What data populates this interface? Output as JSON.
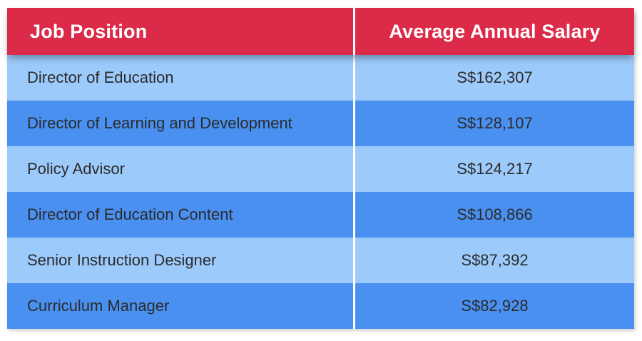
{
  "table": {
    "columns": [
      {
        "label": "Job Position"
      },
      {
        "label": "Average Annual Salary"
      }
    ],
    "rows": [
      {
        "position": "Director of Education",
        "salary": "S$162,307"
      },
      {
        "position": "Director of Learning and Development",
        "salary": "S$128,107"
      },
      {
        "position": "Policy Advisor",
        "salary": "S$124,217"
      },
      {
        "position": "Director of Education Content",
        "salary": "S$108,866"
      },
      {
        "position": "Senior Instruction Designer",
        "salary": "S$87,392"
      },
      {
        "position": "Curriculum Manager",
        "salary": "S$82,928"
      }
    ],
    "colors": {
      "header_bg": "#dc2a49",
      "header_text": "#ffffff",
      "row_light": "#9ccbfb",
      "row_dark": "#4a90f0",
      "row_text": "#2b2b2b",
      "divider": "#ffffff"
    }
  },
  "chart_data": {
    "type": "table",
    "title": "",
    "columns": [
      "Job Position",
      "Average Annual Salary"
    ],
    "categories": [
      "Director of Education",
      "Director of Learning and Development",
      "Policy Advisor",
      "Director of Education Content",
      "Senior Instruction Designer",
      "Curriculum Manager"
    ],
    "values": [
      162307,
      128107,
      124217,
      108866,
      87392,
      82928
    ],
    "value_labels": [
      "S$162,307",
      "S$128,107",
      "S$124,217",
      "S$108,866",
      "S$87,392",
      "S$82,928"
    ],
    "currency": "SGD",
    "layout": "two-column table, red header row, alternating light/dark blue data rows"
  }
}
